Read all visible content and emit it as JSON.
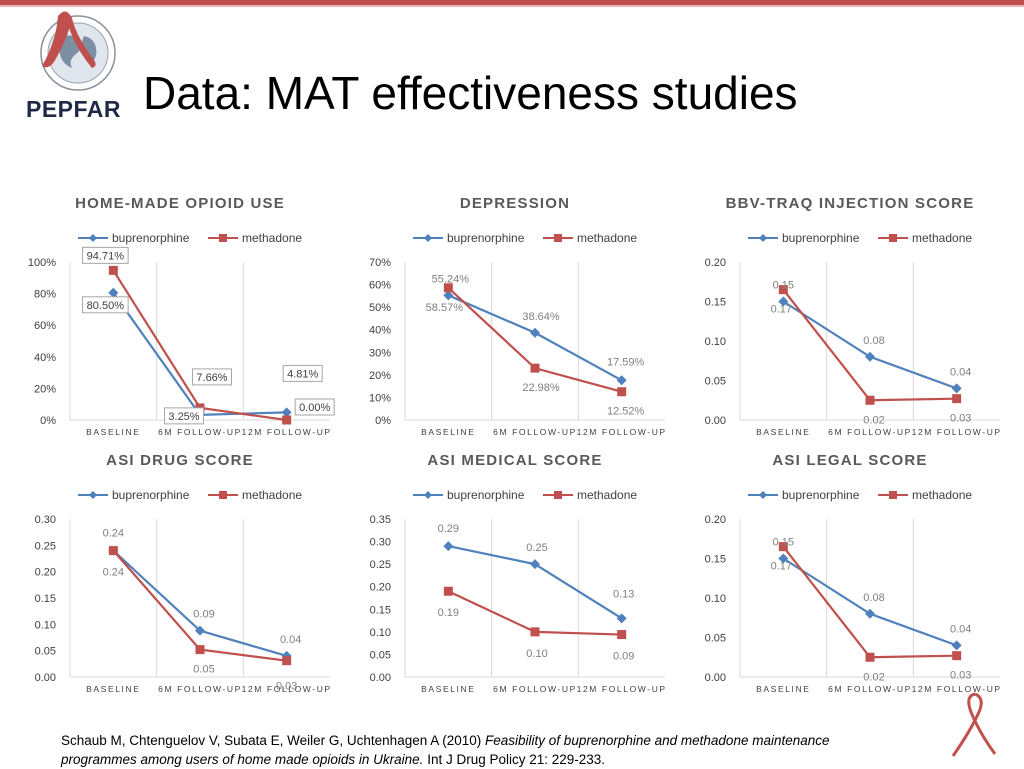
{
  "slide": {
    "title": "Data: MAT effectiveness studies",
    "logo_text": "PEPFAR",
    "citation_plain": "Schaub M, Chtenguelov V, Subata E, Weiler G, Uchtenhagen A (2010) ",
    "citation_italic": "Feasibility of buprenorphine and methadone maintenance programmes among users of home made opioids in Ukraine.",
    "citation_tail": " Int J Drug Policy 21: 229-233.",
    "colors": {
      "buprenorphine": "#4f81bd",
      "methadone": "#c0504d",
      "accent": "#c0504d"
    }
  },
  "chart_data": [
    {
      "type": "line",
      "title": "HOME-MADE OPIOID USE",
      "categories": [
        "BASELINE",
        "6M FOLLOW-UP",
        "12M FOLLOW-UP"
      ],
      "yticks": [
        "0%",
        "20%",
        "40%",
        "60%",
        "80%",
        "100%"
      ],
      "ylim": [
        0,
        100
      ],
      "legend_position": "top",
      "series": [
        {
          "name": "buprenorphine",
          "values": [
            80.5,
            3.25,
            4.81
          ]
        },
        {
          "name": "methadone",
          "values": [
            94.71,
            7.66,
            0.0
          ]
        }
      ],
      "data_labels": [
        "94.71%",
        "80.50%",
        "7.66%",
        "3.25%",
        "4.81%",
        "0.00%"
      ]
    },
    {
      "type": "line",
      "title": "DEPRESSION",
      "categories": [
        "BASELINE",
        "6M FOLLOW-UP",
        "12M FOLLOW-UP"
      ],
      "yticks": [
        "0%",
        "10%",
        "20%",
        "30%",
        "40%",
        "50%",
        "60%",
        "70%"
      ],
      "ylim": [
        0,
        70
      ],
      "legend_position": "top",
      "series": [
        {
          "name": "buprenorphine",
          "values": [
            55.24,
            38.64,
            17.59
          ]
        },
        {
          "name": "methadone",
          "values": [
            58.57,
            22.98,
            12.52
          ]
        }
      ],
      "data_labels": [
        "55.24%",
        "58.57%",
        "38.64%",
        "22.98%",
        "17.59%",
        "12.52%"
      ]
    },
    {
      "type": "line",
      "title": "BBV-TRAQ INJECTION SCORE",
      "categories": [
        "BASELINE",
        "6M FOLLOW-UP",
        "12M FOLLOW-UP"
      ],
      "yticks": [
        "0.00",
        "0.05",
        "0.10",
        "0.15",
        "0.20"
      ],
      "ylim": [
        0,
        0.2
      ],
      "legend_position": "top",
      "series": [
        {
          "name": "buprenorphine",
          "values": [
            0.15,
            0.08,
            0.04
          ]
        },
        {
          "name": "methadone",
          "values": [
            0.165,
            0.025,
            0.027
          ]
        }
      ],
      "data_labels": [
        "0.15",
        "0.17",
        "0.08",
        "0.02",
        "0.04",
        "0.03"
      ]
    },
    {
      "type": "line",
      "title": "ASI DRUG SCORE",
      "categories": [
        "BASELINE",
        "6M FOLLOW-UP",
        "12M FOLLOW-UP"
      ],
      "yticks": [
        "0.00",
        "0.05",
        "0.10",
        "0.15",
        "0.20",
        "0.25",
        "0.30"
      ],
      "ylim": [
        0,
        0.3
      ],
      "legend_position": "top",
      "series": [
        {
          "name": "buprenorphine",
          "values": [
            0.24,
            0.088,
            0.04
          ]
        },
        {
          "name": "methadone",
          "values": [
            0.24,
            0.052,
            0.031
          ]
        }
      ],
      "data_labels": [
        "0.24",
        "0.24",
        "0.09",
        "0.05",
        "0.04",
        "0.03"
      ]
    },
    {
      "type": "line",
      "title": "ASI MEDICAL SCORE",
      "categories": [
        "BASELINE",
        "6M FOLLOW-UP",
        "12M FOLLOW-UP"
      ],
      "yticks": [
        "0.00",
        "0.05",
        "0.10",
        "0.15",
        "0.20",
        "0.25",
        "0.30",
        "0.35"
      ],
      "ylim": [
        0,
        0.35
      ],
      "legend_position": "top",
      "series": [
        {
          "name": "buprenorphine",
          "values": [
            0.29,
            0.25,
            0.13
          ]
        },
        {
          "name": "methadone",
          "values": [
            0.19,
            0.1,
            0.094
          ]
        }
      ],
      "data_labels": [
        "0.29",
        "0.19",
        "0.25",
        "0.10",
        "0.13",
        "0.09"
      ]
    },
    {
      "type": "line",
      "title": "ASI LEGAL SCORE",
      "categories": [
        "BASELINE",
        "6M FOLLOW-UP",
        "12M FOLLOW-UP"
      ],
      "yticks": [
        "0.00",
        "0.05",
        "0.10",
        "0.15",
        "0.20"
      ],
      "ylim": [
        0,
        0.2
      ],
      "legend_position": "top",
      "series": [
        {
          "name": "buprenorphine",
          "values": [
            0.15,
            0.08,
            0.04
          ]
        },
        {
          "name": "methadone",
          "values": [
            0.165,
            0.025,
            0.027
          ]
        }
      ],
      "data_labels": [
        "0.15",
        "0.17",
        "0.08",
        "0.02",
        "0.04",
        "0.03"
      ]
    }
  ]
}
